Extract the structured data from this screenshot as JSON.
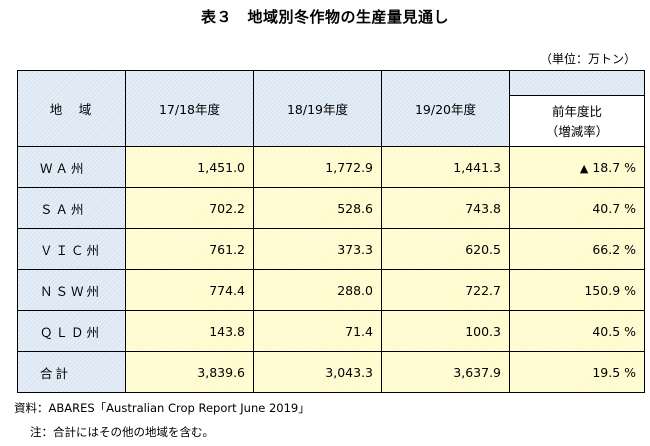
{
  "title": "表３　地域別冬作物の生産量見通し",
  "unit": "（単位：万トン）",
  "table": {
    "headers": {
      "region": "地　域",
      "y1718": "17/18年度",
      "y1819": "18/19年度",
      "y1920": "19/20年度",
      "yoy_line1": "前年度比",
      "yoy_line2": "（増減率）"
    },
    "rows": [
      {
        "region": "ＷＡ州",
        "v1": "1,451.0",
        "v2": "1,772.9",
        "v3": "1,441.3",
        "yoy": "18.7 %",
        "marker": "▲"
      },
      {
        "region": "ＳＡ州",
        "v1": "702.2",
        "v2": "528.6",
        "v3": "743.8",
        "yoy": "40.7 %",
        "marker": ""
      },
      {
        "region": "ＶＩＣ州",
        "v1": "761.2",
        "v2": "373.3",
        "v3": "620.5",
        "yoy": "66.2 %",
        "marker": ""
      },
      {
        "region": "ＮＳＷ州",
        "v1": "774.4",
        "v2": "288.0",
        "v3": "722.7",
        "yoy": "150.9 %",
        "marker": ""
      },
      {
        "region": "ＱＬＤ州",
        "v1": "143.8",
        "v2": "71.4",
        "v3": "100.3",
        "yoy": "40.5 %",
        "marker": ""
      },
      {
        "region": "合計",
        "v1": "3,839.6",
        "v2": "3,043.3",
        "v3": "3,637.9",
        "yoy": "19.5 %",
        "marker": ""
      }
    ]
  },
  "source": "資料：ABARES「Australian Crop Report June 2019」",
  "note": "注：合計にはその他の地域を含む。"
}
